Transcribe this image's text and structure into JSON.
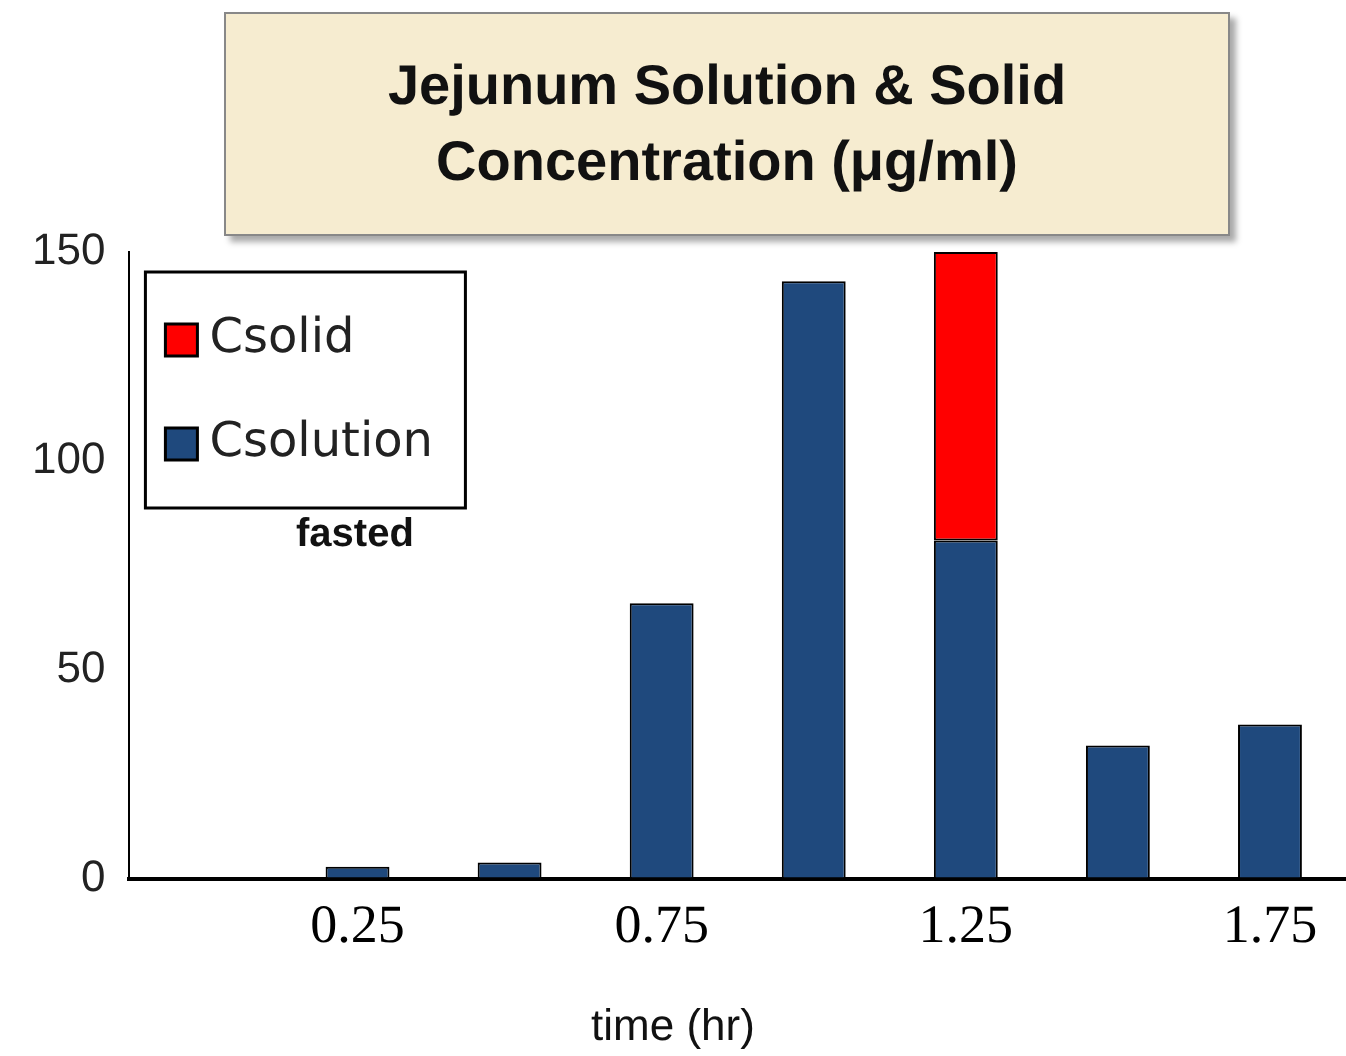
{
  "chart_data": {
    "type": "bar",
    "title": "Jejunum Solution & Solid Concentration (μg/ml)",
    "xlabel": "time (hr)",
    "categories": [
      null,
      "0.25",
      null,
      "0.75",
      null,
      "1.25",
      null,
      "1.75"
    ],
    "stacked": true,
    "series": [
      {
        "name": "Csolution",
        "color": "#1f497d",
        "values": [
          null,
          3,
          4,
          66,
          143,
          81,
          32,
          37
        ]
      },
      {
        "name": "Csolid",
        "color": "#ff0000",
        "values": [
          null,
          null,
          null,
          null,
          null,
          69,
          null,
          null
        ]
      }
    ],
    "ylim": [
      0,
      150
    ],
    "yticks": [
      0,
      50,
      100,
      150
    ],
    "grid": false,
    "legend": "top left",
    "annotations": [
      {
        "text": "fasted"
      }
    ]
  }
}
